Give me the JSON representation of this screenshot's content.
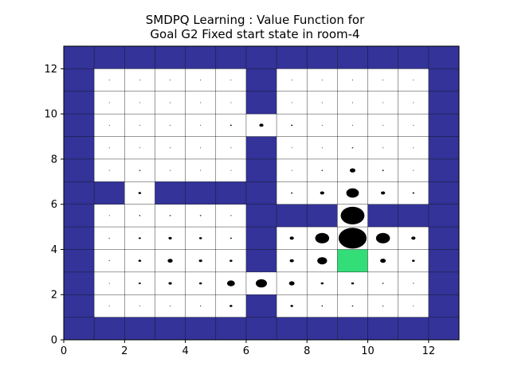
{
  "chart_data": {
    "type": "heatmap",
    "title_lines": [
      "SMDPQ Learning : Value Function for",
      "Goal G2 Fixed start state in room-4"
    ],
    "xlabel": "",
    "ylabel": "",
    "xlim": [
      0,
      13
    ],
    "ylim": [
      0,
      13
    ],
    "x_ticks": [
      0,
      2,
      4,
      6,
      8,
      10,
      12
    ],
    "y_ticks": [
      0,
      2,
      4,
      6,
      8,
      10,
      12
    ],
    "grid": true,
    "colors": {
      "wall": "#333399",
      "free": "#ffffff",
      "goal": "#33dd77",
      "marker": "#000000",
      "gridline": "#000000"
    },
    "goal": {
      "x": 9,
      "y": 3
    },
    "free_rows": [
      {
        "y": 11,
        "cols": [
          1,
          2,
          3,
          4,
          5,
          7,
          8,
          9,
          10,
          11
        ]
      },
      {
        "y": 10,
        "cols": [
          1,
          2,
          3,
          4,
          5,
          7,
          8,
          9,
          10,
          11
        ]
      },
      {
        "y": 9,
        "cols": [
          1,
          2,
          3,
          4,
          5,
          6,
          7,
          8,
          9,
          10,
          11
        ]
      },
      {
        "y": 8,
        "cols": [
          1,
          2,
          3,
          4,
          5,
          7,
          8,
          9,
          10,
          11
        ]
      },
      {
        "y": 7,
        "cols": [
          1,
          2,
          3,
          4,
          5,
          7,
          8,
          9,
          10,
          11
        ]
      },
      {
        "y": 6,
        "cols": [
          2,
          7,
          8,
          9,
          10,
          11
        ]
      },
      {
        "y": 5,
        "cols": [
          1,
          2,
          3,
          4,
          5,
          9
        ]
      },
      {
        "y": 4,
        "cols": [
          1,
          2,
          3,
          4,
          5,
          7,
          8,
          9,
          10,
          11
        ]
      },
      {
        "y": 3,
        "cols": [
          1,
          2,
          3,
          4,
          5,
          7,
          8,
          9,
          10,
          11
        ]
      },
      {
        "y": 2,
        "cols": [
          1,
          2,
          3,
          4,
          5,
          6,
          7,
          8,
          9,
          10,
          11
        ]
      },
      {
        "y": 1,
        "cols": [
          1,
          2,
          3,
          4,
          5,
          7,
          8,
          9,
          10,
          11
        ]
      }
    ],
    "values": [
      {
        "x": 1,
        "y": 1,
        "v": 0.02
      },
      {
        "x": 2,
        "y": 1,
        "v": 0.02
      },
      {
        "x": 3,
        "y": 1,
        "v": 0.03
      },
      {
        "x": 4,
        "y": 1,
        "v": 0.04
      },
      {
        "x": 5,
        "y": 1,
        "v": 0.1
      },
      {
        "x": 7,
        "y": 1,
        "v": 0.1
      },
      {
        "x": 8,
        "y": 1,
        "v": 0.05
      },
      {
        "x": 9,
        "y": 1,
        "v": 0.05
      },
      {
        "x": 10,
        "y": 1,
        "v": 0.04
      },
      {
        "x": 11,
        "y": 1,
        "v": 0.02
      },
      {
        "x": 1,
        "y": 2,
        "v": 0.03
      },
      {
        "x": 2,
        "y": 2,
        "v": 0.08
      },
      {
        "x": 3,
        "y": 2,
        "v": 0.12
      },
      {
        "x": 4,
        "y": 2,
        "v": 0.1
      },
      {
        "x": 5,
        "y": 2,
        "v": 0.28
      },
      {
        "x": 6,
        "y": 2,
        "v": 0.4
      },
      {
        "x": 7,
        "y": 2,
        "v": 0.2
      },
      {
        "x": 8,
        "y": 2,
        "v": 0.1
      },
      {
        "x": 9,
        "y": 2,
        "v": 0.1
      },
      {
        "x": 10,
        "y": 2,
        "v": 0.05
      },
      {
        "x": 11,
        "y": 2,
        "v": 0.04
      },
      {
        "x": 1,
        "y": 3,
        "v": 0.04
      },
      {
        "x": 2,
        "y": 3,
        "v": 0.1
      },
      {
        "x": 3,
        "y": 3,
        "v": 0.18
      },
      {
        "x": 4,
        "y": 3,
        "v": 0.12
      },
      {
        "x": 5,
        "y": 3,
        "v": 0.1
      },
      {
        "x": 7,
        "y": 3,
        "v": 0.15
      },
      {
        "x": 8,
        "y": 3,
        "v": 0.35
      },
      {
        "x": 10,
        "y": 3,
        "v": 0.2
      },
      {
        "x": 11,
        "y": 3,
        "v": 0.1
      },
      {
        "x": 1,
        "y": 4,
        "v": 0.04
      },
      {
        "x": 2,
        "y": 4,
        "v": 0.08
      },
      {
        "x": 3,
        "y": 4,
        "v": 0.12
      },
      {
        "x": 4,
        "y": 4,
        "v": 0.1
      },
      {
        "x": 5,
        "y": 4,
        "v": 0.06
      },
      {
        "x": 7,
        "y": 4,
        "v": 0.15
      },
      {
        "x": 8,
        "y": 4,
        "v": 0.5
      },
      {
        "x": 9,
        "y": 4,
        "v": 1.0
      },
      {
        "x": 10,
        "y": 4,
        "v": 0.5
      },
      {
        "x": 11,
        "y": 4,
        "v": 0.15
      },
      {
        "x": 1,
        "y": 5,
        "v": 0.02
      },
      {
        "x": 2,
        "y": 5,
        "v": 0.05
      },
      {
        "x": 3,
        "y": 5,
        "v": 0.05
      },
      {
        "x": 4,
        "y": 5,
        "v": 0.05
      },
      {
        "x": 5,
        "y": 5,
        "v": 0.04
      },
      {
        "x": 9,
        "y": 5,
        "v": 0.85
      },
      {
        "x": 2,
        "y": 6,
        "v": 0.1
      },
      {
        "x": 7,
        "y": 6,
        "v": 0.06
      },
      {
        "x": 8,
        "y": 6,
        "v": 0.15
      },
      {
        "x": 9,
        "y": 6,
        "v": 0.45
      },
      {
        "x": 10,
        "y": 6,
        "v": 0.15
      },
      {
        "x": 11,
        "y": 6,
        "v": 0.07
      },
      {
        "x": 1,
        "y": 7,
        "v": 0.01
      },
      {
        "x": 2,
        "y": 7,
        "v": 0.05
      },
      {
        "x": 3,
        "y": 7,
        "v": 0.02
      },
      {
        "x": 4,
        "y": 7,
        "v": 0.01
      },
      {
        "x": 5,
        "y": 7,
        "v": 0.01
      },
      {
        "x": 7,
        "y": 7,
        "v": 0.03
      },
      {
        "x": 8,
        "y": 7,
        "v": 0.05
      },
      {
        "x": 9,
        "y": 7,
        "v": 0.2
      },
      {
        "x": 10,
        "y": 7,
        "v": 0.06
      },
      {
        "x": 11,
        "y": 7,
        "v": 0.03
      },
      {
        "x": 1,
        "y": 8,
        "v": 0.01
      },
      {
        "x": 2,
        "y": 8,
        "v": 0.02
      },
      {
        "x": 3,
        "y": 8,
        "v": 0.02
      },
      {
        "x": 4,
        "y": 8,
        "v": 0.01
      },
      {
        "x": 5,
        "y": 8,
        "v": 0.02
      },
      {
        "x": 7,
        "y": 8,
        "v": 0.02
      },
      {
        "x": 8,
        "y": 8,
        "v": 0.03
      },
      {
        "x": 9,
        "y": 8,
        "v": 0.05
      },
      {
        "x": 10,
        "y": 8,
        "v": 0.03
      },
      {
        "x": 11,
        "y": 8,
        "v": 0.02
      },
      {
        "x": 1,
        "y": 9,
        "v": 0.01
      },
      {
        "x": 2,
        "y": 9,
        "v": 0.01
      },
      {
        "x": 3,
        "y": 9,
        "v": 0.02
      },
      {
        "x": 4,
        "y": 9,
        "v": 0.02
      },
      {
        "x": 5,
        "y": 9,
        "v": 0.06
      },
      {
        "x": 6,
        "y": 9,
        "v": 0.15
      },
      {
        "x": 7,
        "y": 9,
        "v": 0.06
      },
      {
        "x": 8,
        "y": 9,
        "v": 0.03
      },
      {
        "x": 9,
        "y": 9,
        "v": 0.02
      },
      {
        "x": 10,
        "y": 9,
        "v": 0.02
      },
      {
        "x": 11,
        "y": 9,
        "v": 0.01
      },
      {
        "x": 1,
        "y": 10,
        "v": 0.01
      },
      {
        "x": 2,
        "y": 10,
        "v": 0.01
      },
      {
        "x": 3,
        "y": 10,
        "v": 0.01
      },
      {
        "x": 4,
        "y": 10,
        "v": 0.01
      },
      {
        "x": 5,
        "y": 10,
        "v": 0.02
      },
      {
        "x": 7,
        "y": 10,
        "v": 0.02
      },
      {
        "x": 8,
        "y": 10,
        "v": 0.01
      },
      {
        "x": 9,
        "y": 10,
        "v": 0.01
      },
      {
        "x": 10,
        "y": 10,
        "v": 0.01
      },
      {
        "x": 11,
        "y": 10,
        "v": 0.01
      },
      {
        "x": 1,
        "y": 11,
        "v": 0.01
      },
      {
        "x": 2,
        "y": 11,
        "v": 0.01
      },
      {
        "x": 3,
        "y": 11,
        "v": 0.01
      },
      {
        "x": 4,
        "y": 11,
        "v": 0.01
      },
      {
        "x": 5,
        "y": 11,
        "v": 0.01
      },
      {
        "x": 7,
        "y": 11,
        "v": 0.01
      },
      {
        "x": 8,
        "y": 11,
        "v": 0.01
      },
      {
        "x": 9,
        "y": 11,
        "v": 0.01
      },
      {
        "x": 10,
        "y": 11,
        "v": 0.01
      },
      {
        "x": 11,
        "y": 11,
        "v": 0.01
      }
    ]
  }
}
